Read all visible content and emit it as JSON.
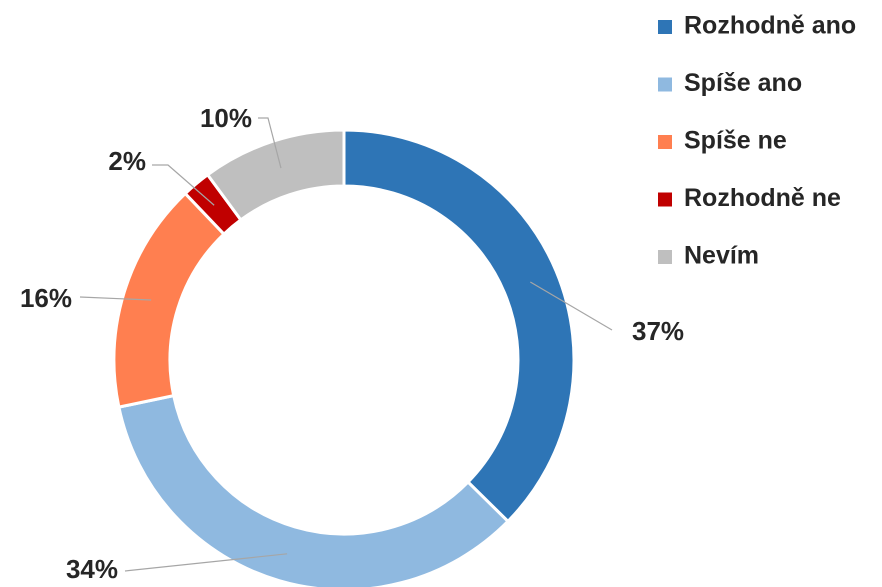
{
  "chart_data": {
    "type": "pie",
    "categories": [
      "Rozhodně ano",
      "Spíše ano",
      "Spíše ne",
      "Rozhodně ne",
      "Nevím"
    ],
    "values": [
      37,
      34,
      16,
      2,
      10
    ],
    "value_labels": [
      "37%",
      "34%",
      "16%",
      "2%",
      "10%"
    ],
    "colors": [
      "#2e75b6",
      "#8fb9e0",
      "#ff7f50",
      "#c00000",
      "#bfbfbf"
    ],
    "donut": true,
    "legend": "top-right"
  }
}
